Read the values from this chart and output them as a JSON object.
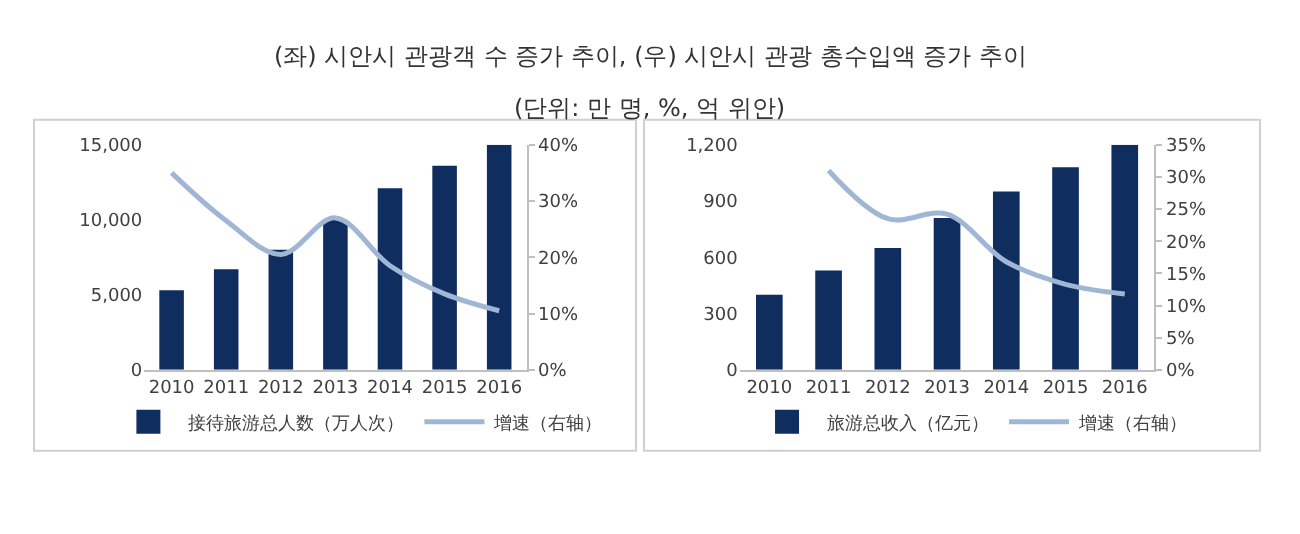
{
  "chart_data": [
    {
      "type": "bar",
      "title": "(좌) 시안시 관광객 수 증가 추이, (우) 시안시 관광 총수입액 증가 추이",
      "subtitle": "(단위: 만 명, %, 억 위안)",
      "categories": [
        "2010",
        "2011",
        "2012",
        "2013",
        "2014",
        "2015",
        "2016"
      ],
      "series": [
        {
          "name": "接待旅游总人数（万人次）",
          "color": "#0f2d5f",
          "values": [
            5300,
            6700,
            8000,
            10000,
            12100,
            13600,
            15000
          ]
        },
        {
          "name": "增速（右轴）",
          "color": "#9fb6d4",
          "type": "line",
          "axis": "y2",
          "values": [
            35,
            26.5,
            20.5,
            27,
            18.5,
            13.5,
            10.5
          ]
        }
      ],
      "ylim": [
        0,
        15000
      ],
      "yticks": [
        0,
        {
          "value": 5000,
          "label": "5,000"
        },
        {
          "value": 10000,
          "label": "10,000"
        },
        {
          "value": 15000,
          "label": "15,000"
        }
      ],
      "y2lim": [
        0,
        40
      ],
      "y2ticks": [
        {
          "value": 0,
          "label": "0%"
        },
        {
          "value": 10,
          "label": "10%"
        },
        {
          "value": 20,
          "label": "20%"
        },
        {
          "value": 30,
          "label": "30%"
        },
        {
          "value": 40,
          "label": "40%"
        }
      ],
      "legend": "bottom",
      "marker": "none",
      "line_style": "solid"
    },
    {
      "type": "bar",
      "categories": [
        "2010",
        "2011",
        "2012",
        "2013",
        "2014",
        "2015",
        "2016"
      ],
      "series": [
        {
          "name": "旅游总收入（亿元）",
          "color": "#0f2d5f",
          "values": [
            400,
            530,
            650,
            810,
            950,
            1080,
            1200
          ]
        },
        {
          "name": "增速（右轴）",
          "color": "#9fb6d4",
          "type": "line",
          "axis": "y2",
          "values": [
            null,
            31,
            23.5,
            24.2,
            16.8,
            13.3,
            11.8
          ]
        }
      ],
      "ylim": [
        0,
        1200
      ],
      "yticks": [
        0,
        300,
        600,
        900,
        {
          "value": 1200,
          "label": "1,200"
        }
      ],
      "y2lim": [
        0,
        35
      ],
      "y2ticks": [
        {
          "value": 0,
          "label": "0%"
        },
        {
          "value": 5,
          "label": "5%"
        },
        {
          "value": 10,
          "label": "10%"
        },
        {
          "value": 15,
          "label": "15%"
        },
        {
          "value": 20,
          "label": "20%"
        },
        {
          "value": 25,
          "label": "25%"
        },
        {
          "value": 30,
          "label": "30%"
        },
        {
          "value": 35,
          "label": "35%"
        }
      ],
      "legend": "bottom",
      "marker": "none",
      "line_style": "solid"
    }
  ]
}
